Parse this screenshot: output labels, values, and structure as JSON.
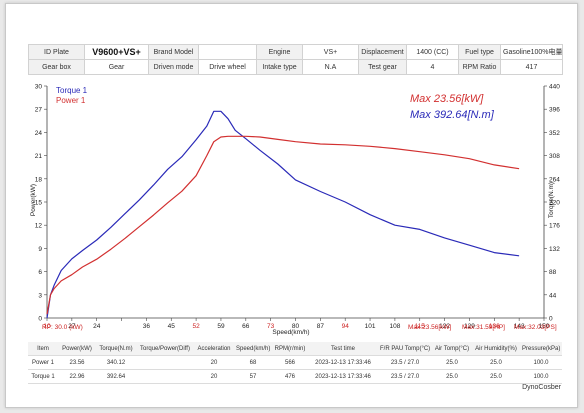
{
  "info": {
    "row1": [
      "ID Plate",
      "V9600+VS+",
      "Brand Model",
      "",
      "Engine",
      "VS+",
      "Displacement",
      "1400  (CC)",
      "Fuel type",
      "Gasoline100%电量#"
    ],
    "row2": [
      "Gear box",
      "Gear",
      "Driven mode",
      "Drive wheel",
      "Intake type",
      "N.A",
      "Test gear",
      "4",
      "RPM Ratio",
      "417"
    ]
  },
  "legend": {
    "torque": "Torque 1",
    "power": "Power 1"
  },
  "max_labels": {
    "power": "Max 23.56[kW]",
    "torque": "Max 392.64[N.m]"
  },
  "colors": {
    "torque": "#2a2ab8",
    "power": "#d23030"
  },
  "chart_data": {
    "type": "line",
    "xlabel": "Speed(km/h)",
    "ylabel_left": "Power(kW)",
    "ylabel_right": "Torque(N.m)",
    "xlim": [
      10,
      150
    ],
    "ylim_left": [
      0,
      30
    ],
    "ylim_right": [
      0,
      440
    ],
    "x_ticks": [
      "10",
      "27",
      "24",
      "",
      "36",
      "45",
      "52",
      "59",
      "66",
      "73",
      "80",
      "87",
      "94",
      "101",
      "108",
      "115",
      "122",
      "129",
      "136",
      "143",
      "150"
    ],
    "y_left_ticks": [
      "0",
      "3",
      "6",
      "9",
      "12",
      "15",
      "18",
      "21",
      "24",
      "27",
      "30"
    ],
    "y_right_ticks": [
      "0",
      "44",
      "88",
      "132",
      "176",
      "220",
      "264",
      "308",
      "352",
      "396",
      "440"
    ],
    "grid": false,
    "legend_position": "top-left",
    "series": [
      {
        "name": "Torque 1",
        "axis": "right",
        "x": [
          10,
          11,
          12,
          14,
          17,
          20,
          24,
          28,
          32,
          36,
          40,
          44,
          48,
          52,
          55,
          57,
          59,
          61,
          63,
          66,
          70,
          75,
          80,
          87,
          94,
          101,
          108,
          115,
          122,
          129,
          136,
          143
        ],
        "y": [
          0,
          44,
          62,
          90,
          112,
          128,
          148,
          172,
          198,
          224,
          252,
          282,
          306,
          338,
          364,
          392,
          392,
          378,
          356,
          340,
          318,
          292,
          262,
          240,
          220,
          196,
          176,
          168,
          152,
          138,
          124,
          118
        ]
      },
      {
        "name": "Power 1",
        "axis": "left",
        "x": [
          10,
          11,
          12,
          14,
          17,
          20,
          24,
          28,
          32,
          36,
          40,
          44,
          48,
          52,
          55,
          57,
          59,
          61,
          63,
          66,
          70,
          75,
          80,
          87,
          94,
          101,
          108,
          115,
          122,
          129,
          136,
          143
        ],
        "y": [
          0.5,
          3.0,
          3.8,
          4.8,
          5.6,
          6.6,
          7.6,
          8.9,
          10.3,
          11.8,
          13.3,
          14.9,
          16.4,
          18.4,
          21.0,
          22.8,
          23.4,
          23.5,
          23.5,
          23.5,
          23.4,
          23.1,
          22.8,
          22.5,
          22.4,
          22.2,
          21.9,
          21.5,
          21.1,
          20.6,
          19.8,
          19.3
        ]
      }
    ]
  },
  "stats": {
    "left": "RP: 30.0 (kW)",
    "right": [
      "Max:23.56[kW]",
      "Max:31.59[HP]",
      "Max:32.03[PS]"
    ]
  },
  "results": {
    "headers": [
      "Item",
      "Power(kW)",
      "Torque(N.m)",
      "Torque/Power(Diff)",
      "Acceleration",
      "Speed(km/h)",
      "RPM(r/min)",
      "Test time",
      "F/R PAU Tomp(°C)",
      "Air Tomp(°C)",
      "Air Humidity(%)",
      "Pressure(kPa)"
    ],
    "rows": [
      [
        "Power 1",
        "23.56",
        "340.12",
        "",
        "20",
        "68",
        "566",
        "2023-12-13 17:33:46",
        "23.5 / 27.0",
        "25.0",
        "25.0",
        "100.0"
      ],
      [
        "Torque 1",
        "22.96",
        "392.64",
        "",
        "20",
        "57",
        "476",
        "2023-12-13 17:33:46",
        "23.5 / 27.0",
        "25.0",
        "25.0",
        "100.0"
      ]
    ]
  },
  "brand": "DynoCosber"
}
